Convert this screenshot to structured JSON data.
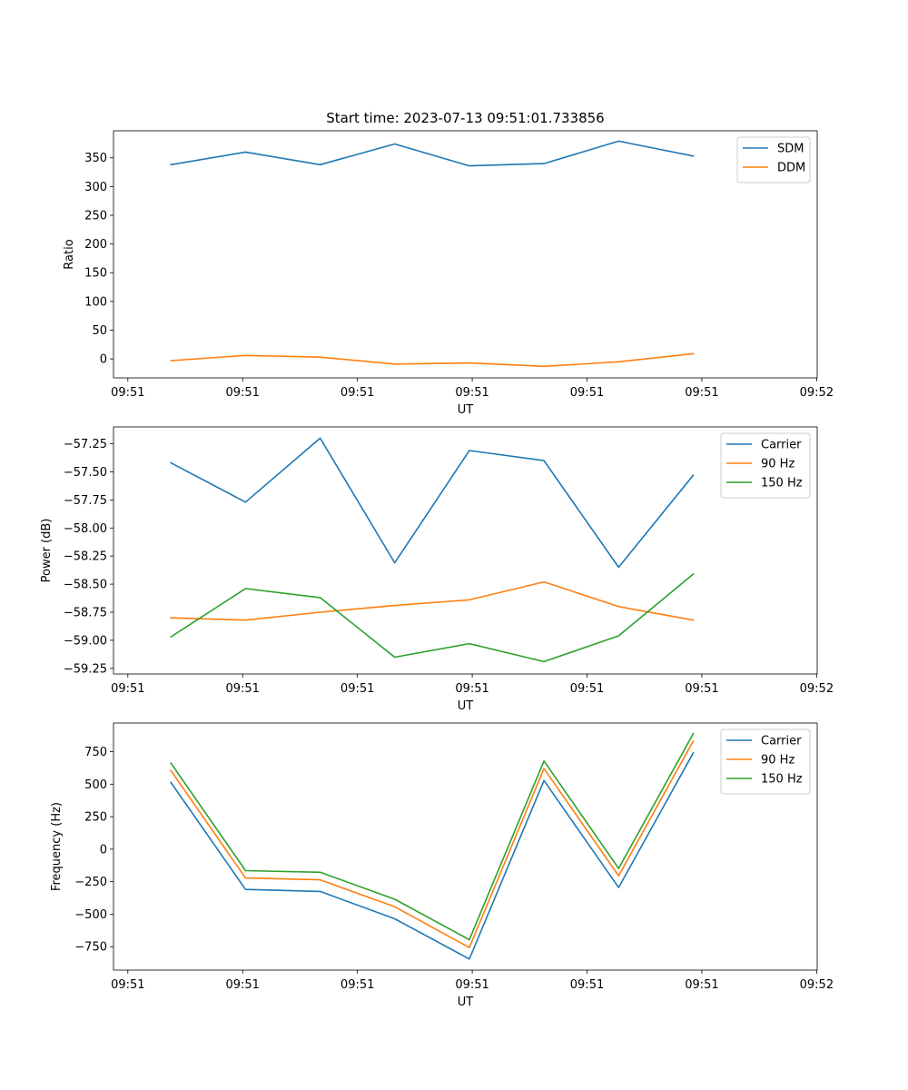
{
  "chart_data": [
    {
      "type": "line",
      "title": "Start time: 2023-07-13 09:51:01.733856",
      "xlabel": "UT",
      "ylabel": "Ratio",
      "x": [
        0.75,
        1.4,
        2.05,
        2.7,
        3.35,
        4.0,
        4.65,
        5.3
      ],
      "xlim": [
        0.25,
        6.38
      ],
      "xticks": [
        0.375,
        1.375,
        2.375,
        3.375,
        4.375,
        5.375,
        6.375
      ],
      "xtick_labels": [
        "09:51",
        "09:51",
        "09:51",
        "09:51",
        "09:51",
        "09:51",
        "09:52"
      ],
      "ylim": [
        -33,
        397
      ],
      "yticks": [
        0,
        50,
        100,
        150,
        200,
        250,
        300,
        350
      ],
      "ytick_labels": [
        "0",
        "50",
        "100",
        "150",
        "200",
        "250",
        "300",
        "350"
      ],
      "legend_position": "upper right",
      "series": [
        {
          "name": "SDM",
          "color": "#1f77b4",
          "values": [
            338,
            360,
            338,
            374,
            336,
            340,
            379,
            353
          ]
        },
        {
          "name": "DDM",
          "color": "#ff7f0e",
          "values": [
            -3,
            6,
            3,
            -9,
            -7,
            -13,
            -5,
            9
          ]
        }
      ]
    },
    {
      "type": "line",
      "title": "",
      "xlabel": "UT",
      "ylabel": "Power (dB)",
      "x": [
        0.75,
        1.4,
        2.05,
        2.7,
        3.35,
        4.0,
        4.65,
        5.3
      ],
      "xlim": [
        0.25,
        6.38
      ],
      "xticks": [
        0.375,
        1.375,
        2.375,
        3.375,
        4.375,
        5.375,
        6.375
      ],
      "xtick_labels": [
        "09:51",
        "09:51",
        "09:51",
        "09:51",
        "09:51",
        "09:51",
        "09:52"
      ],
      "ylim": [
        -59.3,
        -57.1
      ],
      "yticks": [
        -59.25,
        -59.0,
        -58.75,
        -58.5,
        -58.25,
        -58.0,
        -57.75,
        -57.5,
        -57.25
      ],
      "ytick_labels": [
        "−59.25",
        "−59.00",
        "−58.75",
        "−58.50",
        "−58.25",
        "−58.00",
        "−57.75",
        "−57.50",
        "−57.25"
      ],
      "legend_position": "upper right",
      "series": [
        {
          "name": "Carrier",
          "color": "#1f77b4",
          "values": [
            -57.42,
            -57.77,
            -57.2,
            -58.31,
            -57.31,
            -57.4,
            -58.35,
            -57.53
          ]
        },
        {
          "name": "90 Hz",
          "color": "#ff7f0e",
          "values": [
            -58.8,
            -58.82,
            -58.75,
            -58.69,
            -58.64,
            -58.48,
            -58.7,
            -58.82
          ]
        },
        {
          "name": "150 Hz",
          "color": "#2ca02c",
          "values": [
            -58.97,
            -58.54,
            -58.62,
            -59.15,
            -59.03,
            -59.19,
            -58.96,
            -58.41
          ]
        }
      ]
    },
    {
      "type": "line",
      "title": "",
      "xlabel": "UT",
      "ylabel": "Frequency (Hz)",
      "x": [
        0.75,
        1.4,
        2.05,
        2.7,
        3.35,
        4.0,
        4.65,
        5.3
      ],
      "xlim": [
        0.25,
        6.38
      ],
      "xticks": [
        0.375,
        1.375,
        2.375,
        3.375,
        4.375,
        5.375,
        6.375
      ],
      "xtick_labels": [
        "09:51",
        "09:51",
        "09:51",
        "09:51",
        "09:51",
        "09:51",
        "09:52"
      ],
      "ylim": [
        -930,
        970
      ],
      "yticks": [
        -750,
        -500,
        -250,
        0,
        250,
        500,
        750
      ],
      "ytick_labels": [
        "−750",
        "−500",
        "−250",
        "0",
        "250",
        "500",
        "750"
      ],
      "legend_position": "upper right",
      "series": [
        {
          "name": "Carrier",
          "color": "#1f77b4",
          "values": [
            513,
            -310,
            -325,
            -535,
            -845,
            528,
            -295,
            740
          ]
        },
        {
          "name": "90 Hz",
          "color": "#ff7f0e",
          "values": [
            605,
            -222,
            -236,
            -443,
            -757,
            620,
            -205,
            832
          ]
        },
        {
          "name": "150 Hz",
          "color": "#2ca02c",
          "values": [
            662,
            -165,
            -178,
            -385,
            -696,
            678,
            -148,
            888
          ]
        }
      ]
    }
  ]
}
